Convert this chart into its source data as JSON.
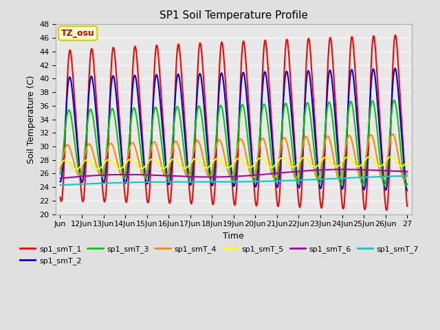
{
  "title": "SP1 Soil Temperature Profile",
  "xlabel": "Time",
  "ylabel": "Soil Temperature (C)",
  "annotation_text": "TZ_osu",
  "annotation_bg": "#ffffcc",
  "annotation_border": "#cccc00",
  "annotation_text_color": "#cc0000",
  "ylim": [
    20,
    48
  ],
  "yticks": [
    20,
    22,
    24,
    26,
    28,
    30,
    32,
    34,
    36,
    38,
    40,
    42,
    44,
    46,
    48
  ],
  "background_color": "#e0e0e0",
  "plot_bg": "#e8e8e8",
  "grid_color": "#ffffff",
  "series": [
    {
      "label": "sp1_smT_1",
      "color": "#ff0000",
      "linewidth": 1.5
    },
    {
      "label": "sp1_smT_2",
      "color": "#0000dd",
      "linewidth": 1.5
    },
    {
      "label": "sp1_smT_3",
      "color": "#00cc00",
      "linewidth": 1.5
    },
    {
      "label": "sp1_smT_4",
      "color": "#ff8800",
      "linewidth": 1.5
    },
    {
      "label": "sp1_smT_5",
      "color": "#ffff00",
      "linewidth": 1.5
    },
    {
      "label": "sp1_smT_6",
      "color": "#aa00aa",
      "linewidth": 1.5
    },
    {
      "label": "sp1_smT_7",
      "color": "#00cccc",
      "linewidth": 1.5
    }
  ],
  "xtick_labels": [
    "Jun",
    "12Jun",
    "13Jun",
    "14Jun",
    "15Jun",
    "16Jun",
    "17Jun",
    "18Jun",
    "19Jun",
    "20Jun",
    "21Jun",
    "22Jun",
    "23Jun",
    "24Jun",
    "25Jun",
    "26Jun",
    "27"
  ],
  "xtick_positions": [
    0,
    1,
    2,
    3,
    4,
    5,
    6,
    7,
    8,
    9,
    10,
    11,
    12,
    13,
    14,
    15,
    16
  ]
}
